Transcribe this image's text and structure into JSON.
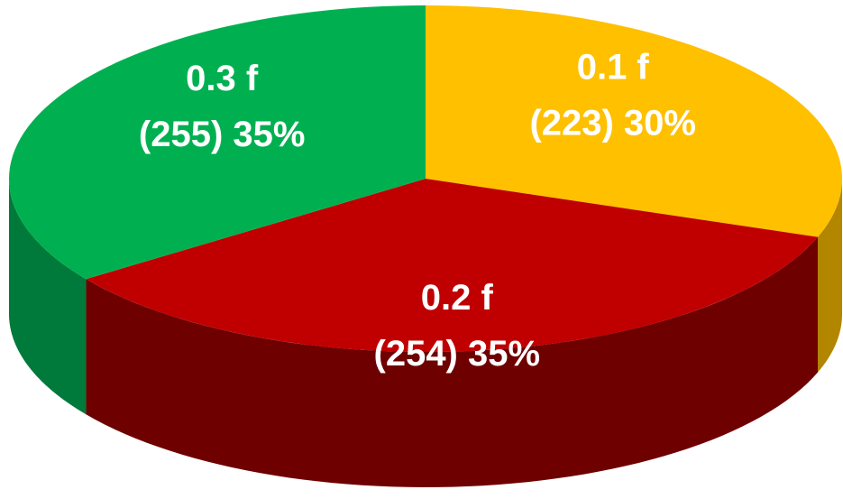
{
  "chart_data": {
    "type": "pie",
    "categories": [
      "0.1 f",
      "0.2 f",
      "0.3 f"
    ],
    "values": [
      223,
      254,
      255
    ],
    "value_labels": [
      "(223) 30%",
      "(254) 35%",
      "(255) 35%"
    ],
    "colors": [
      "#ffc000",
      "#c00000",
      "#00b050"
    ],
    "side_colors": [
      "#b38600",
      "#6e0000",
      "#007a3a"
    ]
  }
}
